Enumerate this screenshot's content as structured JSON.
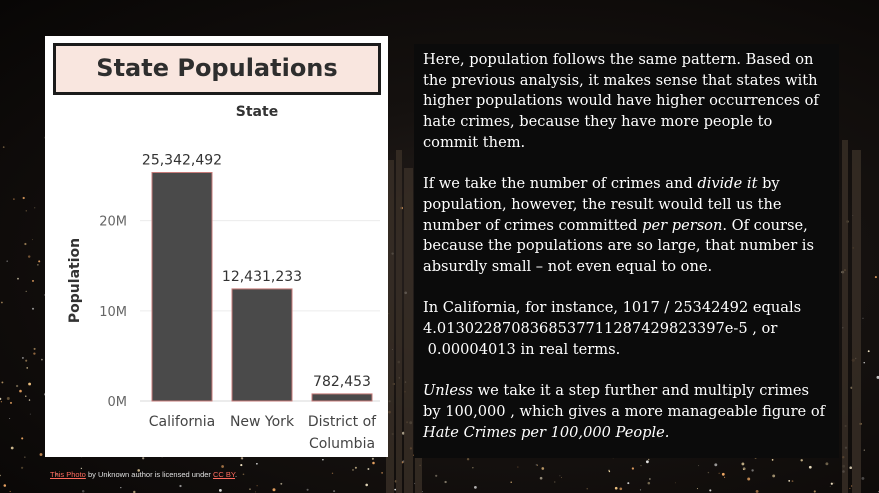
{
  "chart_data": {
    "type": "bar",
    "title": "State Populations",
    "header": "State",
    "ylabel": "Population",
    "categories": [
      "California",
      "New York",
      "District of Columbia"
    ],
    "category_lines": [
      [
        "California"
      ],
      [
        "New York"
      ],
      [
        "District of",
        "Columbia"
      ]
    ],
    "values": [
      25342492,
      12431233,
      782453
    ],
    "value_labels": [
      "25,342,492",
      "12,431,233",
      "782,453"
    ],
    "yticks": [
      0,
      10000000,
      20000000
    ],
    "ytick_labels": [
      "0M",
      "10M",
      "20M"
    ],
    "ylim": [
      0,
      28500000
    ],
    "grid": true,
    "bar_color": "#4a4a4a",
    "bar_border": "#c77b79"
  },
  "text": {
    "p1": "Here, population follows the same pattern. Based on the previous analysis, it makes sense that states with higher populations would have higher occurrences of hate crimes, because they have more people to commit them.",
    "p2_a": "If we take the number of crimes and ",
    "p2_em1": "divide it",
    "p2_b": " by population, however, the result would tell us the number of crimes committed ",
    "p2_em2": "per person",
    "p2_c": ". Of course, because the populations are so large, that number is absurdly small – not even equal to one.",
    "p3_a": "In California, for instance, 1017 / 25342492 equals",
    "p3_b": "4.0130228708368537711287429823397e-5 , or",
    "p3_c": "0.00004013 in real terms.",
    "p4_em1": "Unless",
    "p4_a": " we take it a step further and multiply crimes by 100,000 , which gives a more manageable figure of ",
    "p4_em2": "Hate Crimes per 100,000 People."
  },
  "credit": {
    "link1": "This Photo",
    "middle": " by Unknown author is licensed under ",
    "link2": "CC BY",
    "end": "."
  },
  "colors": {
    "title_bg": "#f9e6df",
    "panel_bg": "#0b0b0b",
    "link": "#ff6b5e"
  }
}
